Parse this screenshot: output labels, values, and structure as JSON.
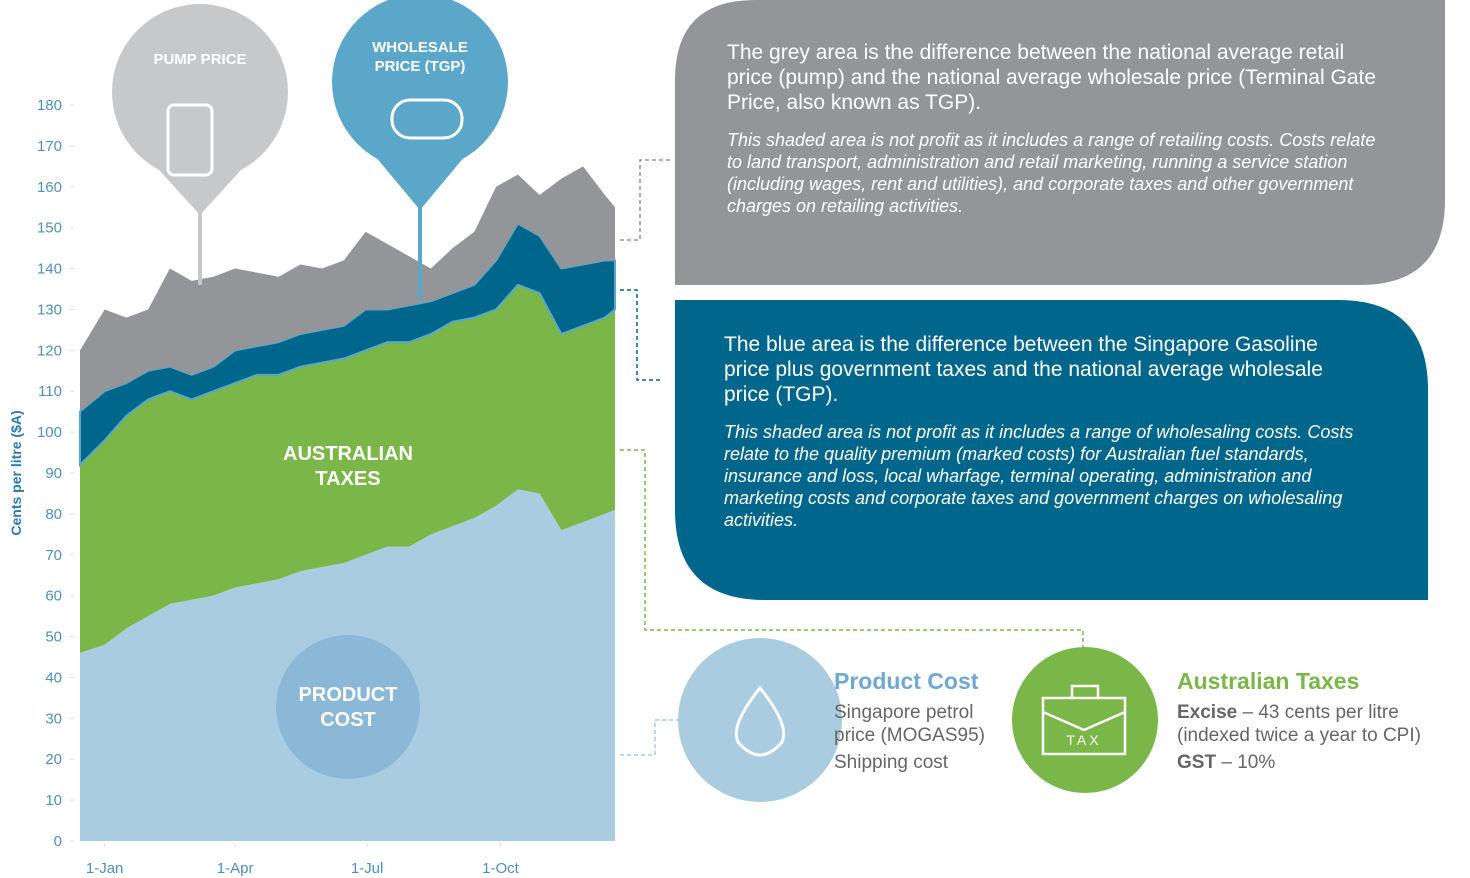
{
  "chart_data": {
    "type": "area",
    "stacked": true,
    "y_label": "Cents per litre ($A)",
    "x": [
      -17,
      0,
      15,
      30,
      45,
      60,
      75,
      90,
      105,
      120,
      135,
      150,
      165,
      180,
      195,
      210,
      225,
      240,
      255,
      270,
      285,
      300,
      315,
      330,
      345,
      352
    ],
    "xlim": [
      -17,
      352
    ],
    "xticks": [
      {
        "value": 0,
        "label": "1-Jan"
      },
      {
        "value": 90,
        "label": "1-Apr"
      },
      {
        "value": 181,
        "label": "1-Jul"
      },
      {
        "value": 273,
        "label": "1-Oct"
      }
    ],
    "ylim": [
      0,
      180
    ],
    "yticks": [
      0,
      10,
      20,
      30,
      40,
      50,
      60,
      70,
      80,
      90,
      100,
      110,
      120,
      130,
      140,
      150,
      160,
      170,
      180
    ],
    "series": [
      {
        "name": "PRODUCT COST",
        "color": "#a9cce0",
        "values": [
          46,
          48,
          52,
          55,
          58,
          59,
          60,
          62,
          63,
          64,
          66,
          67,
          68,
          70,
          72,
          72,
          75,
          77,
          79,
          82,
          86,
          85,
          76,
          78,
          80,
          81
        ]
      },
      {
        "name": "AUSTRALIAN TAXES",
        "color": "#7ab648",
        "values": [
          46,
          50,
          52,
          53,
          52,
          49,
          50,
          50,
          51,
          50,
          50,
          50,
          50,
          50,
          50,
          50,
          49,
          50,
          49,
          48,
          50,
          49,
          48,
          48,
          48,
          49
        ]
      },
      {
        "color": "#00668c",
        "values": [
          13,
          12,
          8,
          7,
          6,
          6,
          6,
          8,
          7,
          8,
          8,
          8,
          8,
          10,
          8,
          9,
          8,
          7,
          8,
          12,
          15,
          14,
          16,
          15,
          14,
          12
        ]
      },
      {
        "color": "#939598",
        "values": [
          15,
          20,
          16,
          15,
          24,
          23,
          22,
          20,
          18,
          16,
          17,
          15,
          16,
          19,
          16,
          12,
          8,
          11,
          13,
          18,
          12,
          10,
          22,
          24,
          16,
          13
        ]
      }
    ],
    "annotations": [
      "PUMP PRICE",
      "WHOLESALE PRICE (TGP)"
    ]
  },
  "grey_panel": {
    "text": "The grey area is the difference between the national average retail price (pump) and the national average wholesale price (Terminal Gate Price, also known as TGP).",
    "note": "This shaded area is not profit as it includes a range of retailing costs. Costs relate to land transport, administration and retail marketing, running a service station (including wages, rent and utilities), and corporate taxes and other government charges on retailing activities."
  },
  "blue_panel": {
    "text": "The blue area is the difference between the Singapore Gasoline price plus government taxes and the national average wholesale price (TGP).",
    "note": "This shaded area is not profit as it includes a range of wholesaling costs. Costs relate to the quality premium (marked costs) for Australian fuel standards, insurance and loss, local wharfage, terminal operating, administration and marketing costs and corporate taxes and government charges on wholesaling activities."
  },
  "product_cost": {
    "title": "Product Cost",
    "items": [
      "Singapore petrol price (MOGAS95)",
      "Shipping cost"
    ]
  },
  "australian_taxes": {
    "title": "Australian Taxes",
    "icon_label": "TAX",
    "items": [
      {
        "label": "Excise",
        "text": "– 43 cents per litre (indexed twice a year to CPI)"
      },
      {
        "label": "GST",
        "text": "– 10%"
      }
    ]
  }
}
